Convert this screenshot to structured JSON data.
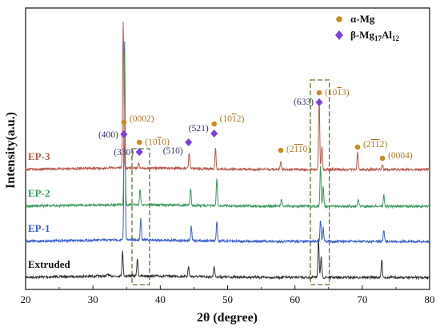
{
  "chart_data": {
    "type": "line",
    "xlabel": "2θ (degree)",
    "ylabel": "Intensity(a.u.)",
    "xlim": [
      20,
      80
    ],
    "x_ticks": [
      "20",
      "30",
      "40",
      "50",
      "60",
      "70",
      "80"
    ],
    "y_ticks_labeled": false,
    "grid": false,
    "legend_position": "top-right",
    "legend": [
      {
        "name": "α-Mg",
        "marker": "circle",
        "color": "#c98c1e"
      },
      {
        "name": "β-Mg17Al12",
        "marker": "diamond",
        "color": "#7b3fe4"
      }
    ],
    "series": [
      {
        "name": "Extruded",
        "color": "#333333",
        "offset": 0,
        "peaks": [
          {
            "x": 32.2,
            "h": 0.03
          },
          {
            "x": 34.4,
            "h": 0.32
          },
          {
            "x": 36.6,
            "h": 0.23
          },
          {
            "x": 44.2,
            "h": 0.13
          },
          {
            "x": 48.0,
            "h": 0.14
          },
          {
            "x": 63.5,
            "h": 0.52
          },
          {
            "x": 63.9,
            "h": 0.26
          },
          {
            "x": 72.9,
            "h": 0.23
          }
        ]
      },
      {
        "name": "EP-1",
        "color": "#3a5fd0",
        "offset": 1,
        "peaks": [
          {
            "x": 34.7,
            "h": 2.6
          },
          {
            "x": 37.1,
            "h": 0.28
          },
          {
            "x": 44.6,
            "h": 0.18
          },
          {
            "x": 48.4,
            "h": 0.26
          },
          {
            "x": 63.8,
            "h": 0.28
          },
          {
            "x": 64.2,
            "h": 0.18
          },
          {
            "x": 73.2,
            "h": 0.14
          }
        ]
      },
      {
        "name": "EP-2",
        "color": "#3c9a5e",
        "offset": 2,
        "peaks": [
          {
            "x": 34.7,
            "h": 2.0
          },
          {
            "x": 37.0,
            "h": 0.2
          },
          {
            "x": 44.5,
            "h": 0.22
          },
          {
            "x": 48.4,
            "h": 0.35
          },
          {
            "x": 58.0,
            "h": 0.1
          },
          {
            "x": 63.8,
            "h": 0.52
          },
          {
            "x": 64.2,
            "h": 0.26
          },
          {
            "x": 69.4,
            "h": 0.1
          },
          {
            "x": 73.2,
            "h": 0.15
          }
        ]
      },
      {
        "name": "EP-3",
        "color": "#b85a4b",
        "offset": 3,
        "peaks": [
          {
            "x": 34.5,
            "h": 1.9
          },
          {
            "x": 36.8,
            "h": 0.07
          },
          {
            "x": 44.3,
            "h": 0.2
          },
          {
            "x": 48.2,
            "h": 0.27
          },
          {
            "x": 57.9,
            "h": 0.1
          },
          {
            "x": 63.6,
            "h": 0.92
          },
          {
            "x": 64.0,
            "h": 0.3
          },
          {
            "x": 69.3,
            "h": 0.22
          },
          {
            "x": 73.0,
            "h": 0.05
          }
        ]
      }
    ],
    "peak_annotations": [
      {
        "label": "(0002)",
        "phase": "α-Mg",
        "x": 34.6
      },
      {
        "label": "(400)",
        "phase": "β-Mg17Al12",
        "x": 34.6
      },
      {
        "label": "(330)",
        "phase": "β-Mg17Al12",
        "x": 36.9
      },
      {
        "label": "(10-10)",
        "phase": "α-Mg",
        "x": 36.9
      },
      {
        "label": "(510)",
        "phase": "β-Mg17Al12",
        "x": 44.2
      },
      {
        "label": "(521)",
        "phase": "β-Mg17Al12",
        "x": 48.0
      },
      {
        "label": "(10-12)",
        "phase": "α-Mg",
        "x": 48.0
      },
      {
        "label": "(2-1-10)",
        "phase": "α-Mg",
        "x": 57.9
      },
      {
        "label": "(633)",
        "phase": "β-Mg17Al12",
        "x": 63.6
      },
      {
        "label": "(10-13)",
        "phase": "α-Mg",
        "x": 63.6
      },
      {
        "label": "(2-1-12)",
        "phase": "α-Mg",
        "x": 69.3
      },
      {
        "label": "(0004)",
        "phase": "α-Mg",
        "x": 73.0
      }
    ],
    "highlight_boxes": [
      {
        "x_range": [
          35.8,
          38.4
        ]
      },
      {
        "x_range": [
          62.3,
          65.1
        ]
      }
    ]
  }
}
